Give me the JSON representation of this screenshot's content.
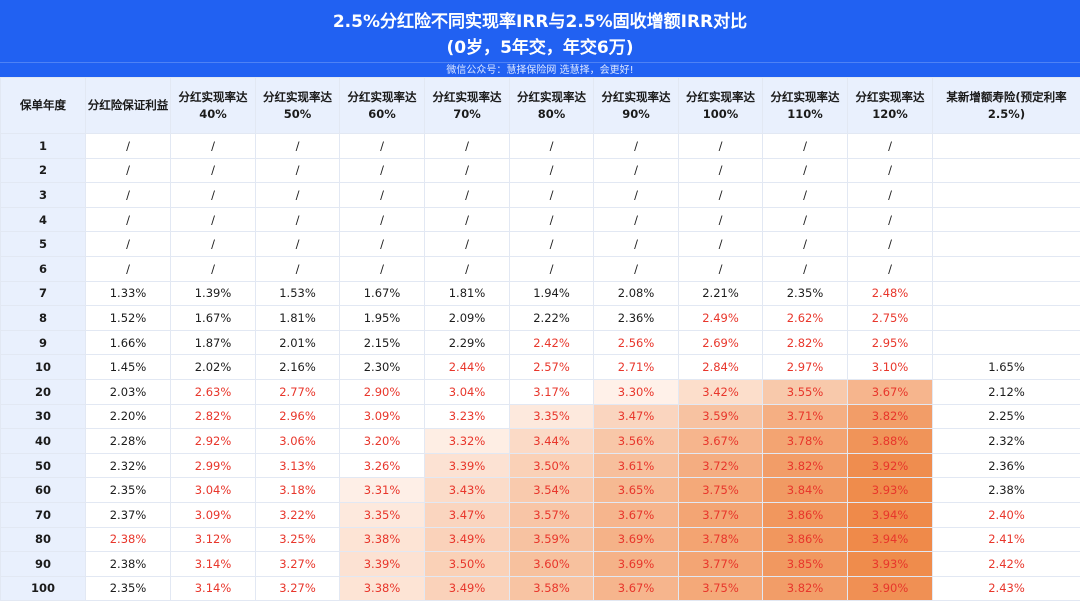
{
  "header": {
    "title_line1": "2.5%分红险不同实现率IRR与2.5%固收增额IRR对比",
    "title_line2": "(0岁，5年交，年交6万)",
    "subtitle": "微信公众号：慧择保险网 选慧择，会更好!"
  },
  "table": {
    "headers": [
      "保单年度",
      "分红险保证利益",
      "分红实现率达40%",
      "分红实现率达50%",
      "分红实现率达60%",
      "分红实现率达70%",
      "分红实现率达80%",
      "分红实现率达90%",
      "分红实现率达100%",
      "分红实现率达110%",
      "分红实现率达120%",
      "某新增额寿险(预定利率2.5%)"
    ],
    "rows": [
      [
        "1",
        "/",
        "/",
        "/",
        "/",
        "/",
        "/",
        "/",
        "/",
        "/",
        "/",
        ""
      ],
      [
        "2",
        "/",
        "/",
        "/",
        "/",
        "/",
        "/",
        "/",
        "/",
        "/",
        "/",
        ""
      ],
      [
        "3",
        "/",
        "/",
        "/",
        "/",
        "/",
        "/",
        "/",
        "/",
        "/",
        "/",
        ""
      ],
      [
        "4",
        "/",
        "/",
        "/",
        "/",
        "/",
        "/",
        "/",
        "/",
        "/",
        "/",
        ""
      ],
      [
        "5",
        "/",
        "/",
        "/",
        "/",
        "/",
        "/",
        "/",
        "/",
        "/",
        "/",
        ""
      ],
      [
        "6",
        "/",
        "/",
        "/",
        "/",
        "/",
        "/",
        "/",
        "/",
        "/",
        "/",
        ""
      ],
      [
        "7",
        "1.33%",
        "1.39%",
        "1.53%",
        "1.67%",
        "1.81%",
        "1.94%",
        "2.08%",
        "2.21%",
        "2.35%",
        "2.48%",
        ""
      ],
      [
        "8",
        "1.52%",
        "1.67%",
        "1.81%",
        "1.95%",
        "2.09%",
        "2.22%",
        "2.36%",
        "2.49%",
        "2.62%",
        "2.75%",
        ""
      ],
      [
        "9",
        "1.66%",
        "1.87%",
        "2.01%",
        "2.15%",
        "2.29%",
        "2.42%",
        "2.56%",
        "2.69%",
        "2.82%",
        "2.95%",
        ""
      ],
      [
        "10",
        "1.45%",
        "2.02%",
        "2.16%",
        "2.30%",
        "2.44%",
        "2.57%",
        "2.71%",
        "2.84%",
        "2.97%",
        "3.10%",
        "1.65%"
      ],
      [
        "20",
        "2.03%",
        "2.63%",
        "2.77%",
        "2.90%",
        "3.04%",
        "3.17%",
        "3.30%",
        "3.42%",
        "3.55%",
        "3.67%",
        "2.12%"
      ],
      [
        "30",
        "2.20%",
        "2.82%",
        "2.96%",
        "3.09%",
        "3.23%",
        "3.35%",
        "3.47%",
        "3.59%",
        "3.71%",
        "3.82%",
        "2.25%"
      ],
      [
        "40",
        "2.28%",
        "2.92%",
        "3.06%",
        "3.20%",
        "3.32%",
        "3.44%",
        "3.56%",
        "3.67%",
        "3.78%",
        "3.88%",
        "2.32%"
      ],
      [
        "50",
        "2.32%",
        "2.99%",
        "3.13%",
        "3.26%",
        "3.39%",
        "3.50%",
        "3.61%",
        "3.72%",
        "3.82%",
        "3.92%",
        "2.36%"
      ],
      [
        "60",
        "2.35%",
        "3.04%",
        "3.18%",
        "3.31%",
        "3.43%",
        "3.54%",
        "3.65%",
        "3.75%",
        "3.84%",
        "3.93%",
        "2.38%"
      ],
      [
        "70",
        "2.37%",
        "3.09%",
        "3.22%",
        "3.35%",
        "3.47%",
        "3.57%",
        "3.67%",
        "3.77%",
        "3.86%",
        "3.94%",
        "2.40%"
      ],
      [
        "80",
        "2.38%",
        "3.12%",
        "3.25%",
        "3.38%",
        "3.49%",
        "3.59%",
        "3.69%",
        "3.78%",
        "3.86%",
        "3.94%",
        "2.41%"
      ],
      [
        "90",
        "2.38%",
        "3.14%",
        "3.27%",
        "3.39%",
        "3.50%",
        "3.60%",
        "3.69%",
        "3.77%",
        "3.85%",
        "3.93%",
        "2.42%"
      ],
      [
        "100",
        "2.35%",
        "3.14%",
        "3.27%",
        "3.38%",
        "3.49%",
        "3.58%",
        "3.67%",
        "3.75%",
        "3.82%",
        "3.90%",
        "2.43%"
      ]
    ]
  },
  "colors": {
    "header_bg": "#2161f2",
    "header_cell_bg": "#e9f0fd",
    "highlight_red": "#e8362b",
    "heat_low": "#fff4ee",
    "heat_high": "#ef8a4a"
  }
}
